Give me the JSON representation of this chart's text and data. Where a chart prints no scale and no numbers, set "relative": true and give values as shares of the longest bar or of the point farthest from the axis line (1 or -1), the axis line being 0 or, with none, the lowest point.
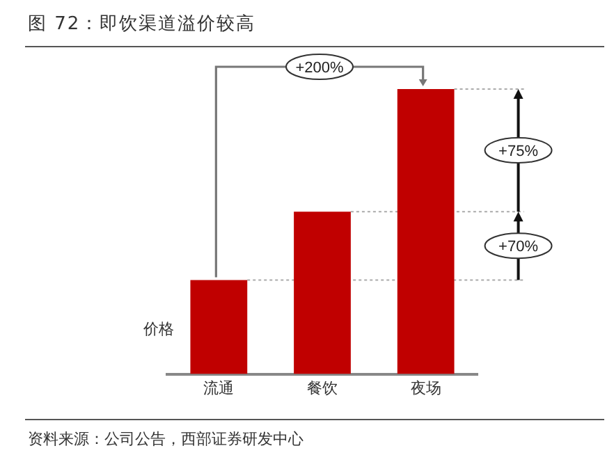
{
  "chart_data": {
    "type": "bar",
    "title": "图 72：即饮渠道溢价较高",
    "ylabel": "价格",
    "categories": [
      "流通",
      "餐饮",
      "夜场"
    ],
    "values": [
      0.33,
      0.57,
      1
    ],
    "color": "#c00000",
    "relative": true,
    "grid": false,
    "legend": false,
    "ref_lines": [
      {
        "axis": "y",
        "value": 0.33,
        "color": "#aaaaaa",
        "line_style": "dotted"
      },
      {
        "axis": "y",
        "value": 0.57,
        "color": "#aaaaaa",
        "line_style": "dotted"
      },
      {
        "axis": "y",
        "value": 1,
        "color": "#aaaaaa",
        "line_style": "dotted"
      }
    ],
    "annotations": [
      "+200%",
      "+75%",
      "+70%",
      "资料来源：公司公告，西部证券研发中心"
    ]
  }
}
